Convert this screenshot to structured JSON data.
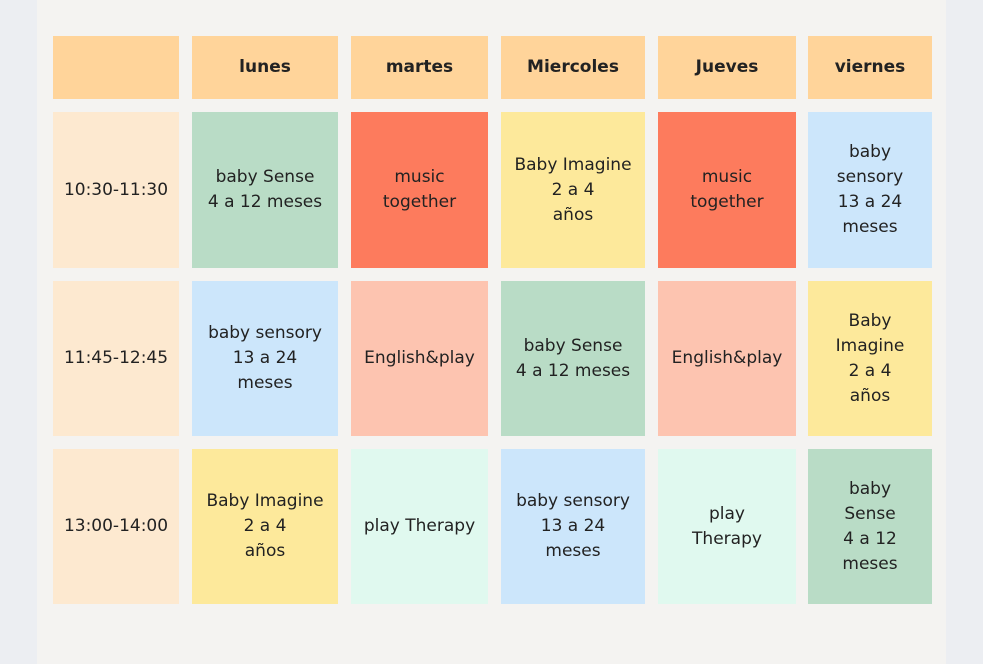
{
  "header": {
    "days": [
      "lunes",
      "martes",
      "Miercoles",
      "Jueves",
      "viernes"
    ]
  },
  "table": {
    "rows": [
      {
        "time": "10:30-11:30",
        "cells": [
          [
            "baby Sense",
            "4 a 12 meses"
          ],
          [
            "music",
            "together"
          ],
          [
            "Baby Imagine",
            "2 a 4",
            "años"
          ],
          [
            "music",
            "together"
          ],
          [
            "baby",
            "sensory",
            "13 a 24",
            "meses"
          ]
        ]
      },
      {
        "time": "11:45-12:45",
        "cells": [
          [
            "baby sensory",
            "13 a 24",
            "meses"
          ],
          [
            "English&play"
          ],
          [
            "baby Sense",
            "4 a 12 meses"
          ],
          [
            "English&play"
          ],
          [
            "Baby",
            "Imagine",
            "2 a 4",
            "años"
          ]
        ]
      },
      {
        "time": "13:00-14:00",
        "cells": [
          [
            "Baby Imagine",
            "2 a 4",
            "años"
          ],
          [
            "play Therapy"
          ],
          [
            "baby sensory",
            "13 a 24",
            "meses"
          ],
          [
            "play",
            "Therapy"
          ],
          [
            "baby",
            "Sense",
            "4 a 12",
            "meses"
          ]
        ]
      }
    ]
  }
}
